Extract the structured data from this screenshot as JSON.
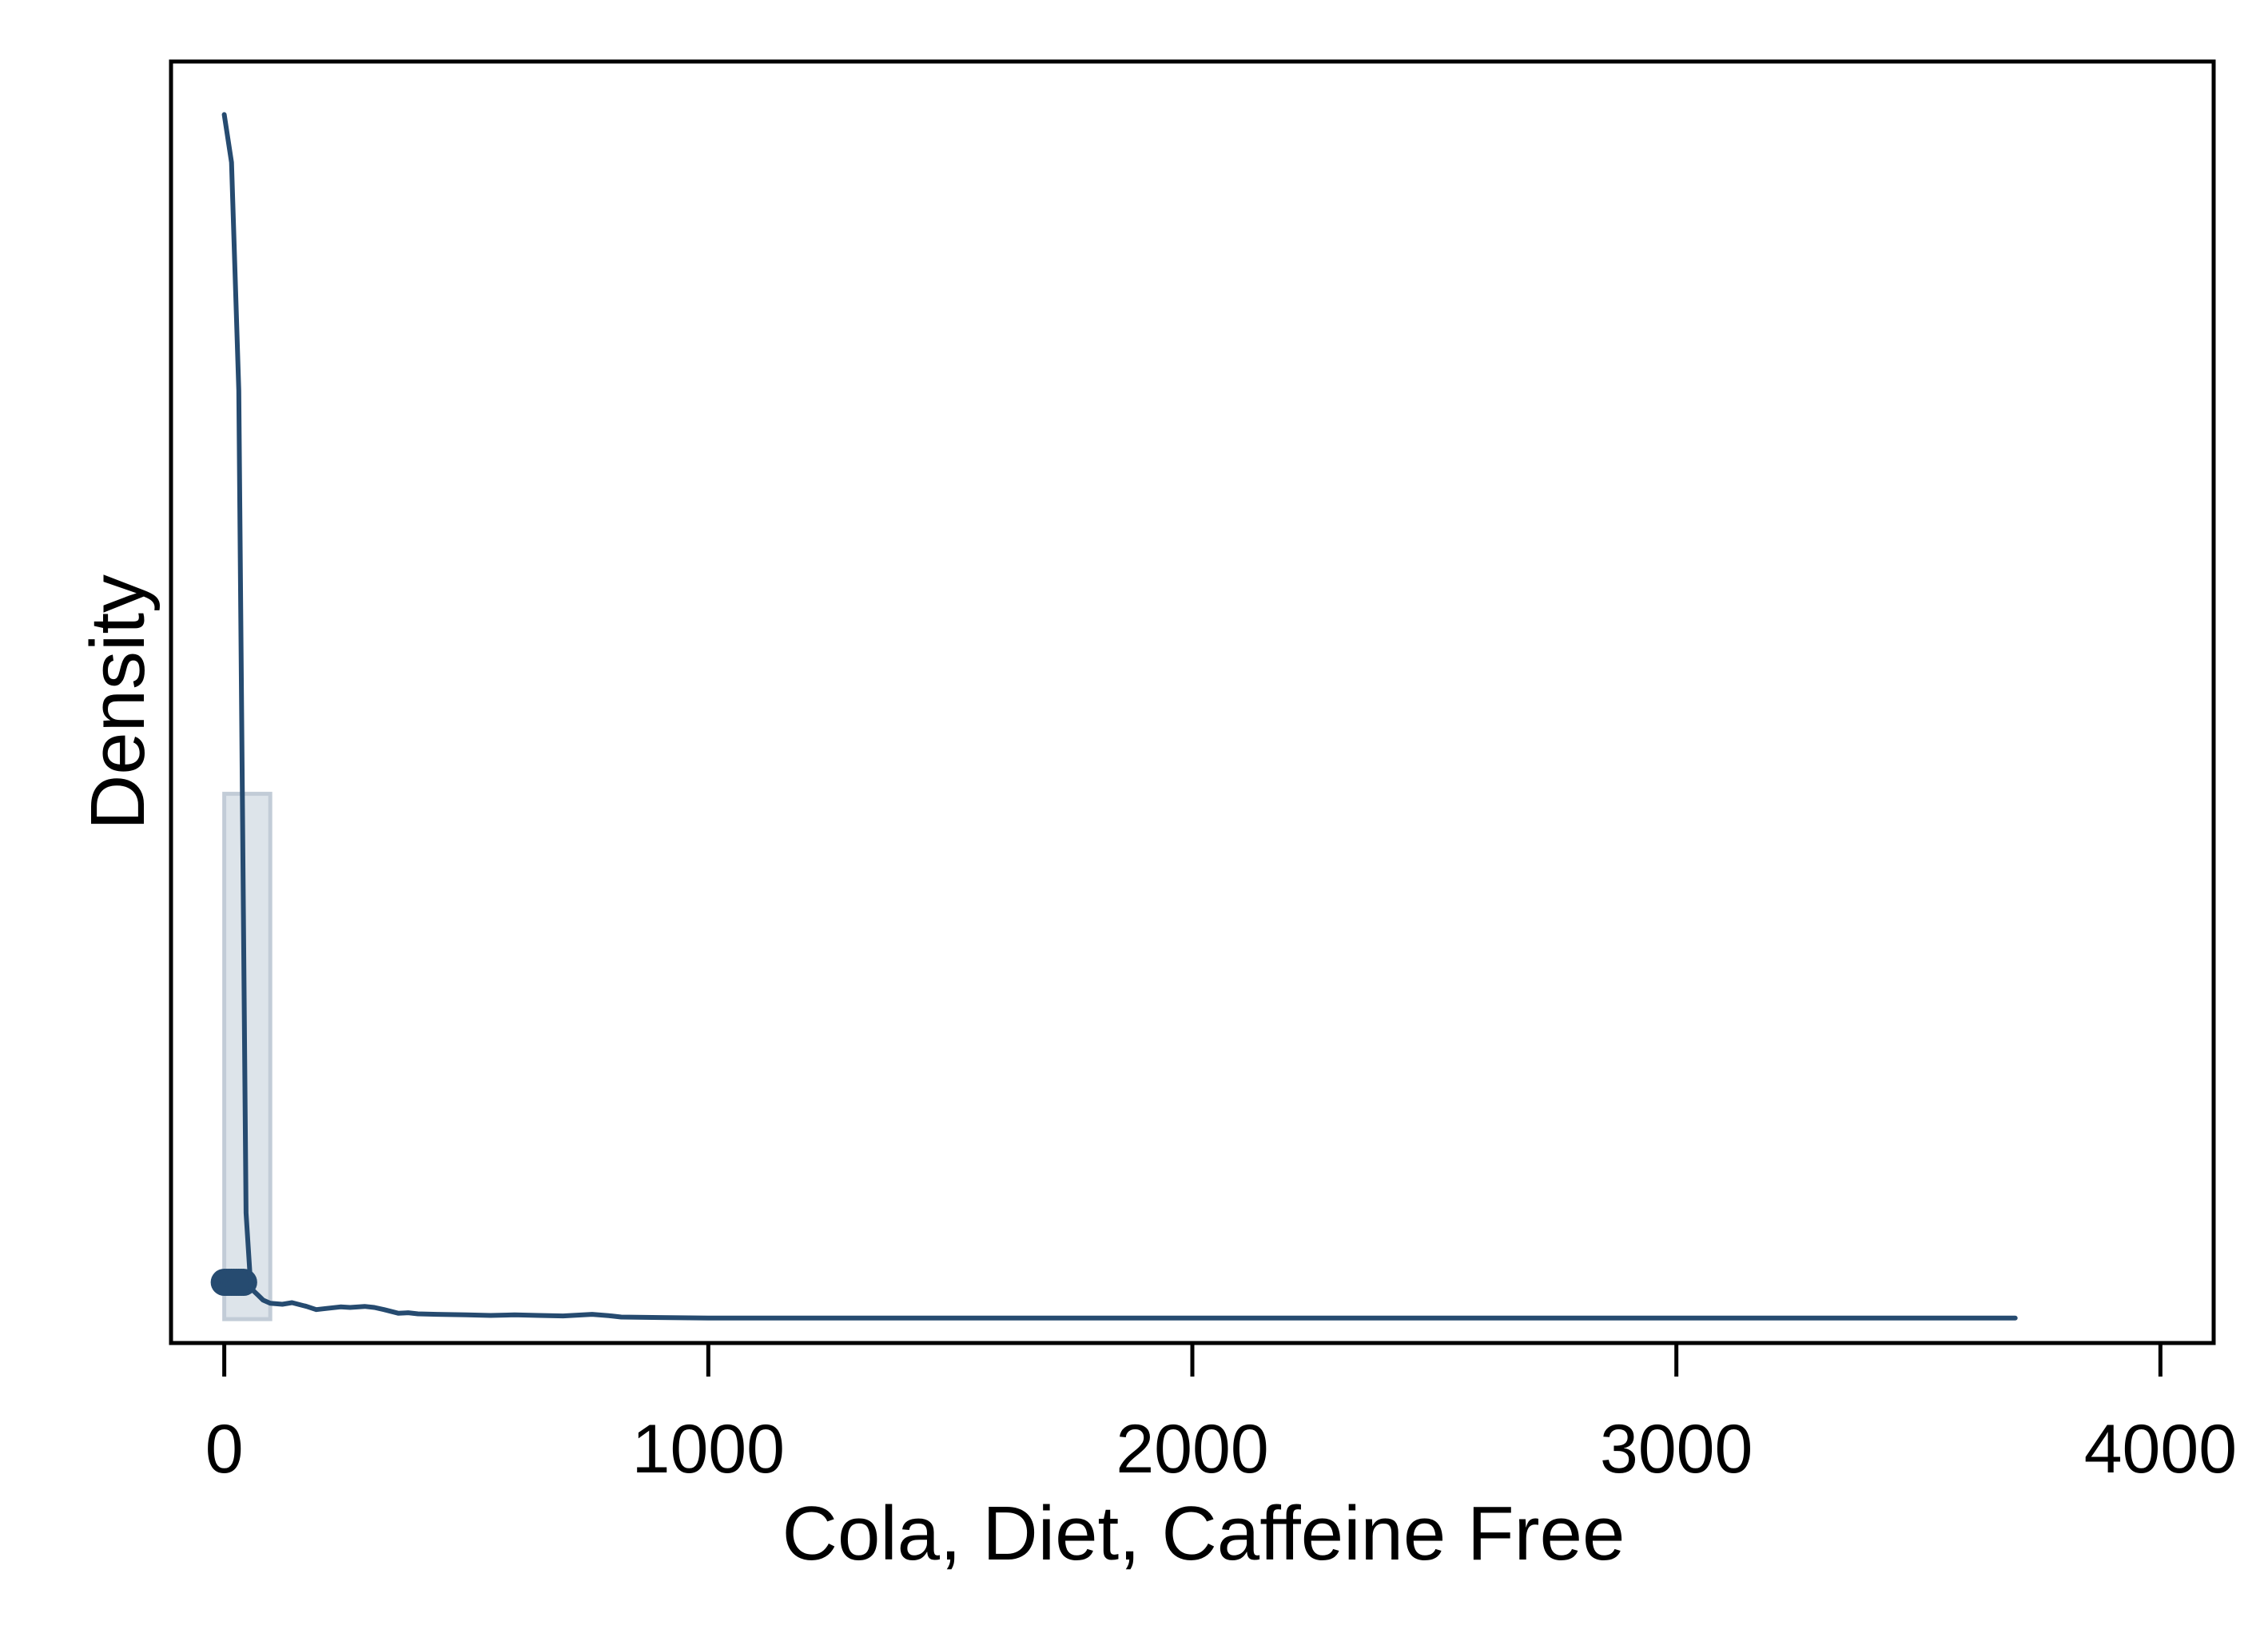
{
  "chart_data": {
    "type": "area",
    "title": "",
    "xlabel": "Cola, Diet, Caffeine Free",
    "ylabel": "Density",
    "xlim": [
      -110,
      4110
    ],
    "ylim": [
      -0.00045,
      0.0237
    ],
    "grid": false,
    "legend": "none",
    "x_ticks": [
      0,
      1000,
      2000,
      3000,
      4000
    ],
    "x_tick_labels": [
      "0",
      "1000",
      "2000",
      "3000",
      "4000"
    ],
    "y_ticks_labeled": false,
    "colors": {
      "line": "#264b70",
      "histogram_fill": "#dde4ea",
      "histogram_stroke": "#c2ccd7",
      "axis": "#000000"
    },
    "histogram": {
      "bins": [
        {
          "x0": 0,
          "x1": 95,
          "density": 0.0099
        }
      ]
    },
    "density_curve": {
      "x": [
        0,
        15,
        30,
        45,
        55,
        70,
        80,
        95,
        120,
        140,
        170,
        190,
        210,
        240,
        260,
        290,
        310,
        330,
        360,
        380,
        400,
        440,
        500,
        550,
        600,
        650,
        700,
        760,
        800,
        820,
        900,
        1000,
        1200,
        1500,
        2000,
        2500,
        2800,
        3000,
        3300,
        3600,
        3700
      ],
      "y": [
        0.0227,
        0.0218,
        0.0175,
        0.002,
        0.00058,
        0.00045,
        0.00036,
        0.0003,
        0.00028,
        0.00031,
        0.00024,
        0.00018,
        0.0002,
        0.00023,
        0.00022,
        0.00024,
        0.00022,
        0.00018,
        0.00011,
        0.00012,
        0.0001,
        9e-05,
        8e-05,
        7e-05,
        8e-05,
        7e-05,
        6e-05,
        9e-05,
        6e-05,
        4e-05,
        3e-05,
        2e-05,
        2e-05,
        2e-05,
        2e-05,
        2e-05,
        2e-05,
        2e-05,
        2e-05,
        2e-05,
        2e-05
      ]
    },
    "rug": {
      "x": [
        0,
        5,
        10,
        15,
        20,
        25,
        30,
        35,
        40
      ]
    }
  }
}
